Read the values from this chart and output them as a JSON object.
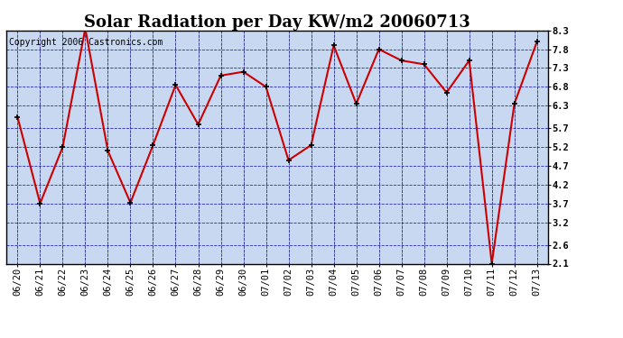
{
  "title": "Solar Radiation per Day KW/m2 20060713",
  "copyright": "Copyright 2006 Castronics.com",
  "dates": [
    "06/20",
    "06/21",
    "06/22",
    "06/23",
    "06/24",
    "06/25",
    "06/26",
    "06/27",
    "06/28",
    "06/29",
    "06/30",
    "07/01",
    "07/02",
    "07/03",
    "07/04",
    "07/05",
    "07/06",
    "07/07",
    "07/08",
    "07/09",
    "07/10",
    "07/11",
    "07/12",
    "07/13"
  ],
  "values": [
    6.0,
    3.7,
    5.2,
    8.35,
    5.1,
    3.72,
    5.25,
    6.85,
    5.8,
    7.1,
    7.2,
    6.8,
    4.85,
    5.25,
    7.9,
    6.35,
    7.8,
    7.5,
    7.4,
    6.65,
    7.5,
    2.1,
    6.35,
    8.0
  ],
  "line_color": "#cc0000",
  "marker_color": "#000000",
  "bg_color": "#c8d8f0",
  "grid_color_dash": "#0000aa",
  "ylim": [
    2.1,
    8.3
  ],
  "yticks": [
    2.1,
    2.6,
    3.2,
    3.7,
    4.2,
    4.7,
    5.2,
    5.7,
    6.3,
    6.8,
    7.3,
    7.8,
    8.3
  ],
  "title_fontsize": 13,
  "tick_fontsize": 7.5,
  "copyright_fontsize": 7
}
